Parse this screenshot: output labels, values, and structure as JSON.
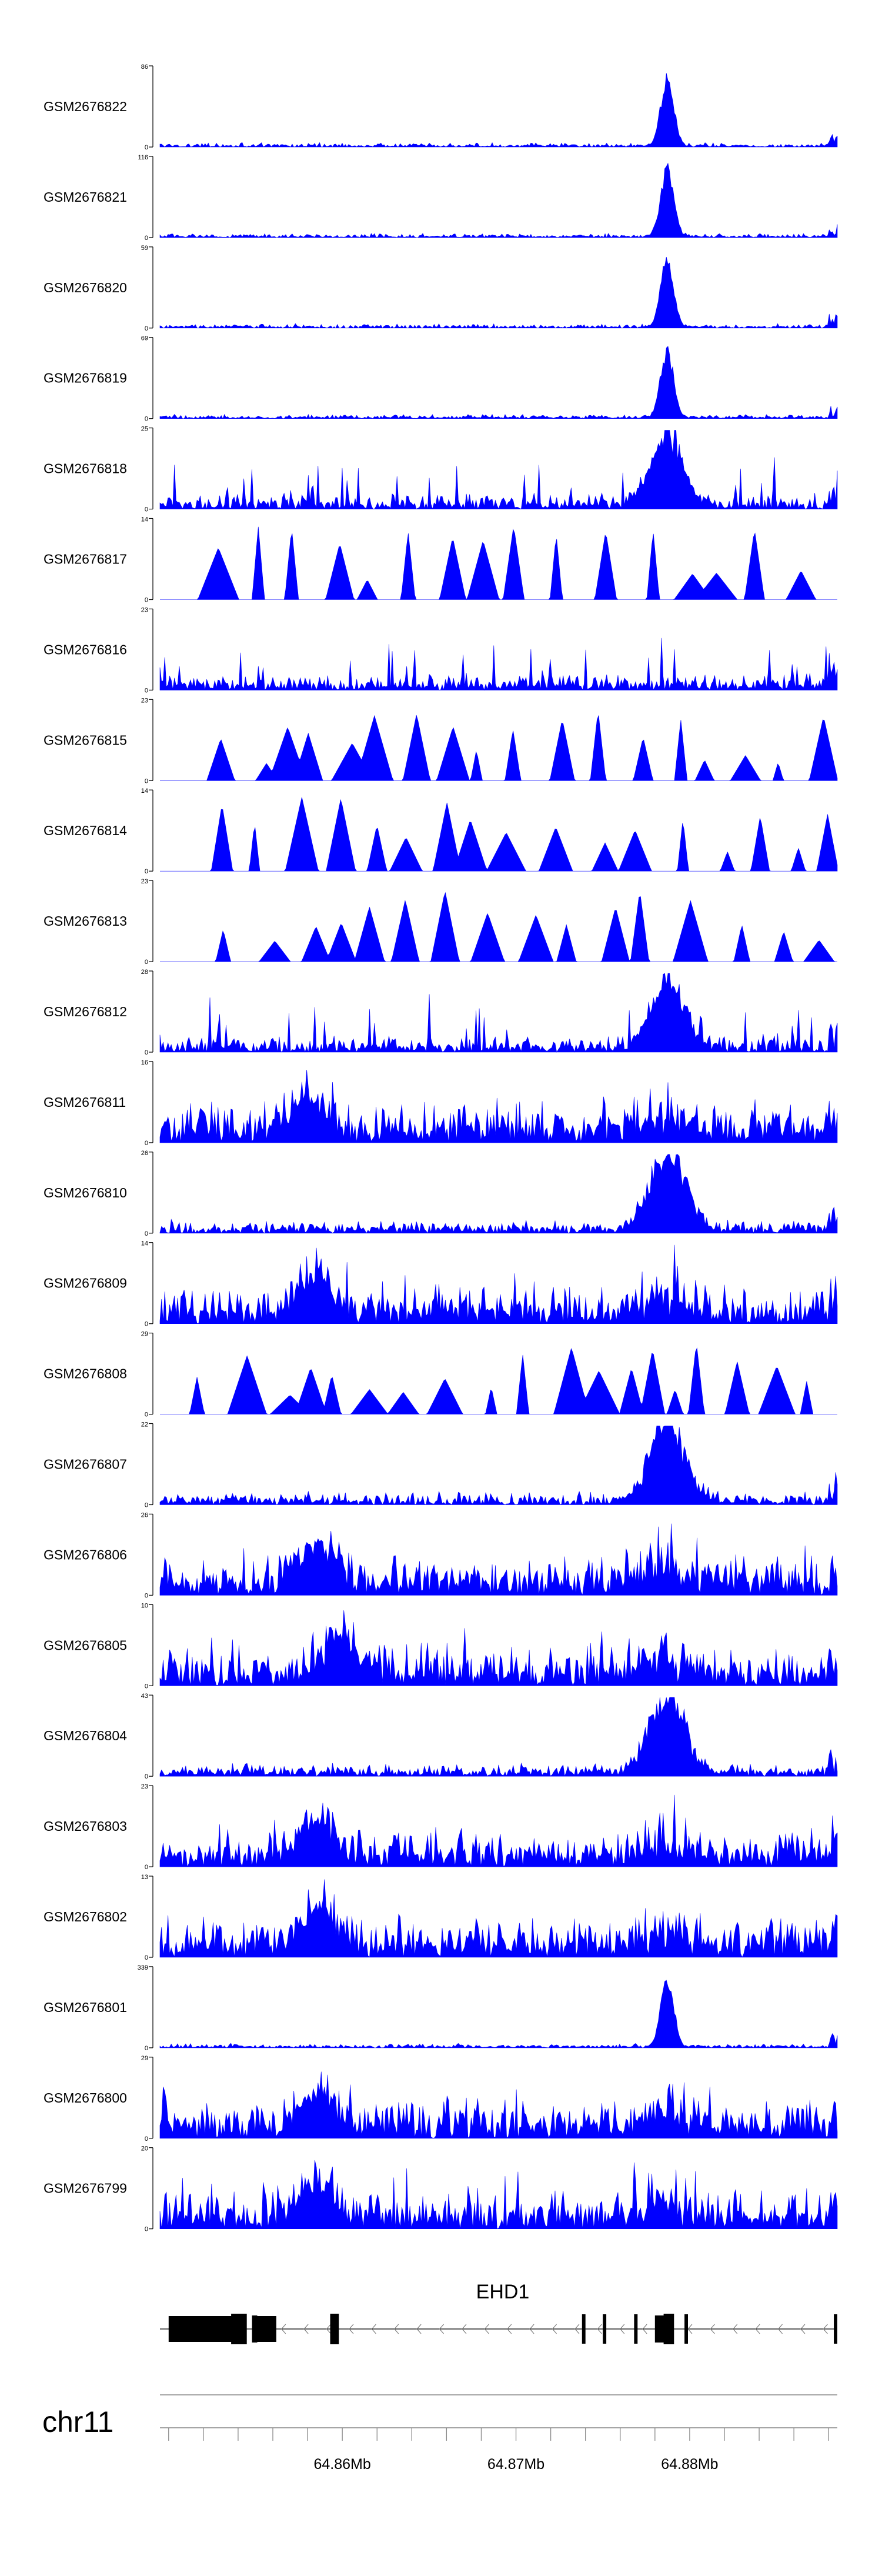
{
  "colors": {
    "signal": "#0000ff",
    "axis": "#000000",
    "gene": "#000000",
    "baseline": "#888888"
  },
  "chart_data": {
    "type": "area",
    "title": "",
    "x_unit": "Mb",
    "x_range": [
      64.8495,
      64.8885
    ],
    "series": [
      {
        "name": "GSM2676822",
        "ymax": "86",
        "ymin": "0",
        "peak": 64.8787,
        "style": "narrow"
      },
      {
        "name": "GSM2676821",
        "ymax": "116",
        "ymin": "0",
        "peak": 64.8787,
        "style": "narrow"
      },
      {
        "name": "GSM2676820",
        "ymax": "59",
        "ymin": "0",
        "peak": 64.8787,
        "style": "narrow"
      },
      {
        "name": "GSM2676819",
        "ymax": "69",
        "ymin": "0",
        "peak": 64.8787,
        "style": "narrow"
      },
      {
        "name": "GSM2676818",
        "ymax": "25",
        "ymin": "0",
        "peak": 64.8787,
        "style": "sparse"
      },
      {
        "name": "GSM2676817",
        "ymax": "14",
        "ymin": "0",
        "peak": null,
        "style": "triangles"
      },
      {
        "name": "GSM2676816",
        "ymax": "23",
        "ymin": "0",
        "peak": null,
        "style": "sparse"
      },
      {
        "name": "GSM2676815",
        "ymax": "23",
        "ymin": "0",
        "peak": null,
        "style": "triangles"
      },
      {
        "name": "GSM2676814",
        "ymax": "14",
        "ymin": "0",
        "peak": null,
        "style": "triangles"
      },
      {
        "name": "GSM2676813",
        "ymax": "23",
        "ymin": "0",
        "peak": null,
        "style": "triangles"
      },
      {
        "name": "GSM2676812",
        "ymax": "28",
        "ymin": "0",
        "peak": 64.8787,
        "style": "sparse"
      },
      {
        "name": "GSM2676811",
        "ymax": "16",
        "ymin": "0",
        "peak": 64.858,
        "style": "dense"
      },
      {
        "name": "GSM2676810",
        "ymax": "26",
        "ymin": "0",
        "peak": 64.8787,
        "style": "moderate"
      },
      {
        "name": "GSM2676809",
        "ymax": "14",
        "ymin": "0",
        "peak": 64.8585,
        "style": "dense"
      },
      {
        "name": "GSM2676808",
        "ymax": "29",
        "ymin": "0",
        "peak": 64.8585,
        "style": "triangles"
      },
      {
        "name": "GSM2676807",
        "ymax": "22",
        "ymin": "0",
        "peak": 64.8787,
        "style": "moderate"
      },
      {
        "name": "GSM2676806",
        "ymax": "26",
        "ymin": "0",
        "peak": 64.8585,
        "style": "dense"
      },
      {
        "name": "GSM2676805",
        "ymax": "10",
        "ymin": "0",
        "peak": 64.86,
        "style": "dense"
      },
      {
        "name": "GSM2676804",
        "ymax": "43",
        "ymin": "0",
        "peak": 64.8787,
        "style": "moderate"
      },
      {
        "name": "GSM2676803",
        "ymax": "23",
        "ymin": "0",
        "peak": 64.8585,
        "style": "dense"
      },
      {
        "name": "GSM2676802",
        "ymax": "13",
        "ymin": "0",
        "peak": 64.8585,
        "style": "dense"
      },
      {
        "name": "GSM2676801",
        "ymax": "339",
        "ymin": "0",
        "peak": 64.8787,
        "style": "narrow"
      },
      {
        "name": "GSM2676800",
        "ymax": "29",
        "ymin": "0",
        "peak": 64.8585,
        "style": "dense"
      },
      {
        "name": "GSM2676799",
        "ymax": "20",
        "ymin": "0",
        "peak": 64.8585,
        "style": "dense"
      }
    ],
    "gene": {
      "name": "EHD1",
      "strand": "-",
      "start": 64.8495,
      "end": 64.8885,
      "exons": [
        [
          64.85,
          64.8537
        ],
        [
          64.8536,
          64.8545
        ],
        [
          64.8548,
          64.8551
        ],
        [
          64.855,
          64.8562
        ],
        [
          64.8593,
          64.8598
        ],
        [
          64.8738,
          64.874
        ],
        [
          64.875,
          64.8752
        ],
        [
          64.8768,
          64.877
        ],
        [
          64.878,
          64.8786
        ],
        [
          64.8785,
          64.8791
        ],
        [
          64.8797,
          64.8799
        ],
        [
          64.8883,
          64.8885
        ]
      ]
    },
    "chrom": "chr11",
    "ticks": [
      64.85,
      64.852,
      64.854,
      64.856,
      64.858,
      64.86,
      64.862,
      64.864,
      64.866,
      64.868,
      64.87,
      64.872,
      64.874,
      64.876,
      64.878,
      64.88,
      64.882,
      64.884,
      64.886,
      64.888
    ],
    "tick_labels": [
      {
        "pos": 64.86,
        "label": "64.86Mb"
      },
      {
        "pos": 64.87,
        "label": "64.87Mb"
      },
      {
        "pos": 64.88,
        "label": "64.88Mb"
      }
    ]
  }
}
